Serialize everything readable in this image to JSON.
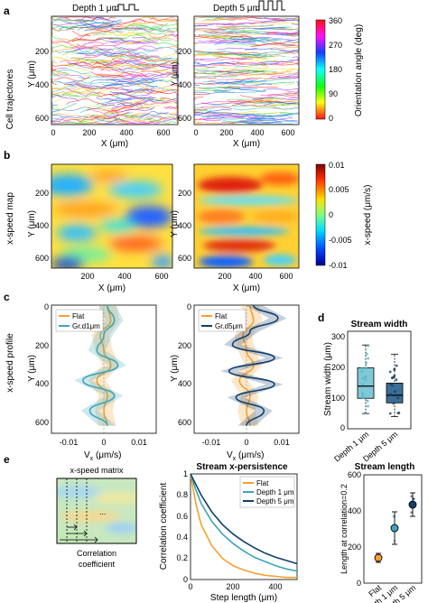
{
  "panels": {
    "a": {
      "letter": "a",
      "row_label": "Cell trajectores",
      "left_title": "Depth 1 μm",
      "right_title": "Depth 5 μm",
      "xlabel": "X (μm)",
      "ylabel": "Y (μm)",
      "xticks": [
        "0",
        "200",
        "400",
        "600"
      ],
      "yticks": [
        "200",
        "400",
        "600"
      ],
      "colorbar_label": "Orientation angle (deg)",
      "colorbar_ticks": [
        "360",
        "270",
        "180",
        "90",
        "0"
      ]
    },
    "b": {
      "letter": "b",
      "row_label": "x-speed map",
      "xlabel": "X (μm)",
      "ylabel": "Y (μm)",
      "xticks": [
        "200",
        "400",
        "600"
      ],
      "yticks": [
        "200",
        "400",
        "600"
      ],
      "colorbar_label": "x-speed (μm/s)",
      "colorbar_ticks": [
        "0.01",
        "0.005",
        "0",
        "-0.005",
        "-0.01"
      ]
    },
    "c": {
      "letter": "c",
      "row_label": "x-speed profile",
      "xlabel": "V",
      "xlabel_sub": "x",
      "xlabel_unit": " (μm/s)",
      "ylabel": "Y (μm)",
      "xticks": [
        "-0.01",
        "0",
        "0.01"
      ],
      "yticks": [
        "0",
        "200",
        "400",
        "600"
      ],
      "left_legend": [
        "Flat",
        "Gr.d1μm"
      ],
      "right_legend": [
        "Flat",
        "Gr.d5μm"
      ]
    },
    "d": {
      "letter": "d",
      "title": "Stream width",
      "ylabel": "Stream width (μm)",
      "yticks": [
        "0",
        "100",
        "200",
        "300"
      ],
      "categories": [
        "Depth 1 μm",
        "Depth 5 μm"
      ]
    },
    "e": {
      "letter": "e",
      "matrix_title": "x-speed matrix",
      "matrix_dots": "...",
      "matrix_caption_1": "Correlation",
      "matrix_caption_2": "coefficient",
      "persist_title": "Stream x-persistence",
      "persist_ylabel": "Correlation coefficient",
      "persist_xlabel": "Step length (μm)",
      "persist_xticks": [
        "0",
        "200",
        "400"
      ],
      "persist_yticks": [
        "0",
        "0.2",
        "0.4",
        "0.6",
        "0.8",
        "1"
      ],
      "persist_legend": [
        "Flat",
        "Depth 1 μm",
        "Depth 5 μm"
      ],
      "len_title": "Stream length",
      "len_ylabel": "Length at correlation=0.2",
      "len_yticks": [
        "0",
        "200",
        "400",
        "600"
      ],
      "len_categories": [
        "Flat",
        "Depth 1 μm",
        "Depth 5 μm"
      ]
    }
  },
  "colors": {
    "flat": "#f5a030",
    "depth1": "#3aa6b9",
    "depth5": "#12406a"
  },
  "chart_data": [
    {
      "type": "line",
      "panel": "c-left",
      "series": [
        {
          "name": "Flat",
          "x": [
            0.001,
            0.002,
            -0.001,
            0.0,
            0.002,
            -0.002,
            0.001,
            0.0,
            0.001
          ],
          "y": [
            0,
            80,
            160,
            240,
            320,
            400,
            480,
            560,
            640
          ]
        },
        {
          "name": "Gr.d1μm",
          "x": [
            0.001,
            0.003,
            0.0,
            -0.002,
            0.004,
            -0.006,
            0.003,
            -0.004,
            0.001
          ],
          "y": [
            0,
            80,
            160,
            240,
            320,
            400,
            480,
            560,
            640
          ]
        }
      ],
      "xlim": [
        -0.015,
        0.015
      ],
      "ylim": [
        0,
        680
      ]
    },
    {
      "type": "line",
      "panel": "c-right",
      "series": [
        {
          "name": "Flat",
          "x": [
            0.001,
            0.002,
            -0.001,
            0.0,
            0.002,
            -0.002,
            0.001,
            0.0,
            0.001
          ],
          "y": [
            0,
            80,
            160,
            240,
            320,
            400,
            480,
            560,
            640
          ]
        },
        {
          "name": "Gr.d5μm",
          "x": [
            0.002,
            0.009,
            0.001,
            -0.004,
            0.008,
            -0.005,
            0.008,
            -0.003,
            0.005,
            0.0
          ],
          "y": [
            0,
            70,
            140,
            210,
            280,
            350,
            420,
            490,
            560,
            640
          ]
        }
      ],
      "xlim": [
        -0.015,
        0.015
      ],
      "ylim": [
        0,
        680
      ]
    },
    {
      "type": "box",
      "panel": "d",
      "categories": [
        "Depth 1 μm",
        "Depth 5 μm"
      ],
      "boxes": [
        {
          "q1": 100,
          "median": 140,
          "q3": 200,
          "whisker_low": 50,
          "whisker_high": 275
        },
        {
          "q1": 85,
          "median": 110,
          "q3": 150,
          "whisker_low": 40,
          "whisker_high": 245
        }
      ],
      "ylim": [
        0,
        320
      ]
    },
    {
      "type": "line",
      "panel": "e-persistence",
      "x": [
        0,
        25,
        50,
        100,
        150,
        200,
        250,
        300,
        350,
        400,
        450,
        500
      ],
      "series": [
        {
          "name": "Flat",
          "values": [
            1,
            0.72,
            0.52,
            0.32,
            0.2,
            0.13,
            0.09,
            0.06,
            0.04,
            0.03,
            0.02,
            0.02
          ]
        },
        {
          "name": "Depth 1 μm",
          "values": [
            1,
            0.85,
            0.72,
            0.55,
            0.43,
            0.34,
            0.27,
            0.21,
            0.17,
            0.13,
            0.1,
            0.08
          ]
        },
        {
          "name": "Depth 5 μm",
          "values": [
            1,
            0.9,
            0.8,
            0.64,
            0.52,
            0.43,
            0.36,
            0.3,
            0.25,
            0.21,
            0.18,
            0.15
          ]
        }
      ],
      "xlim": [
        0,
        500
      ],
      "ylim": [
        0,
        1
      ]
    },
    {
      "type": "scatter",
      "panel": "e-length",
      "categories": [
        "Flat",
        "Depth 1 μm",
        "Depth 5 μm"
      ],
      "means": [
        140,
        305,
        435
      ],
      "errors": [
        25,
        90,
        65
      ],
      "ylim": [
        0,
        600
      ]
    }
  ]
}
